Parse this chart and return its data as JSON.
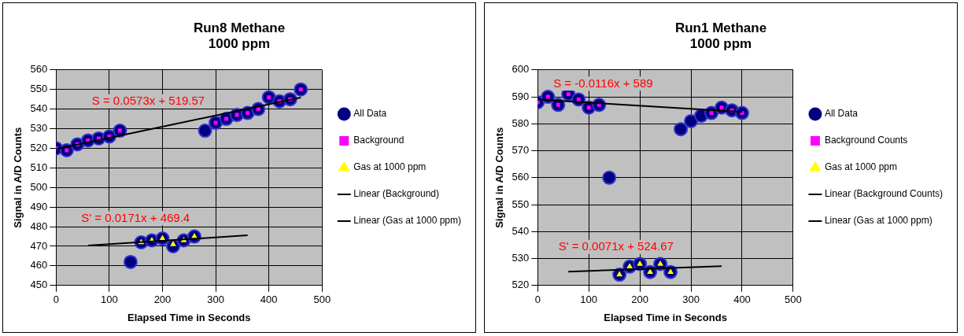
{
  "chart_data": [
    {
      "type": "scatter",
      "title": "Run8 Methane\n1000 ppm",
      "xlabel": "Elapsed Time in Seconds",
      "ylabel": "Signal in A/D Counts",
      "xlim": [
        0,
        500
      ],
      "xticks": [
        0,
        100,
        200,
        300,
        400,
        500
      ],
      "ylim": [
        450,
        560
      ],
      "yticks": [
        450,
        460,
        470,
        480,
        490,
        500,
        510,
        520,
        530,
        540,
        550,
        560
      ],
      "grid": true,
      "legend": "right",
      "series": [
        {
          "name": "All Data",
          "color": "#000080",
          "marker": "circle",
          "x": [
            0,
            20,
            40,
            60,
            80,
            100,
            120,
            140,
            160,
            180,
            200,
            220,
            240,
            260,
            280,
            300,
            320,
            340,
            360,
            380,
            400,
            420,
            440,
            460
          ],
          "values": [
            520,
            519,
            522,
            524,
            525,
            526,
            529,
            462,
            472,
            473,
            474,
            470,
            473,
            475,
            529,
            533,
            535,
            537,
            538,
            540,
            546,
            544,
            545,
            550
          ]
        },
        {
          "name": "Background",
          "color": "#ff00ff",
          "marker": "square",
          "x": [
            0,
            20,
            40,
            60,
            80,
            100,
            120,
            300,
            320,
            340,
            360,
            380,
            400,
            420,
            440,
            460
          ],
          "values": [
            520,
            519,
            522,
            524,
            525,
            526,
            529,
            533,
            535,
            537,
            538,
            540,
            546,
            544,
            545,
            550
          ]
        },
        {
          "name": "Gas at 1000 ppm",
          "color": "#ffff00",
          "marker": "triangle",
          "x": [
            160,
            180,
            200,
            220,
            240,
            260
          ],
          "values": [
            472,
            473,
            474,
            471,
            473,
            475
          ]
        },
        {
          "name": "Linear (Background)",
          "type": "line",
          "color": "#000000",
          "marker": "none",
          "line_style": "solid",
          "x": [
            0,
            460
          ],
          "values": [
            519.6,
            545.9
          ]
        },
        {
          "name": "Linear (Gas at 1000 ppm)",
          "type": "line",
          "color": "#000000",
          "marker": "none",
          "line_style": "solid",
          "x": [
            60,
            360
          ],
          "values": [
            470.4,
            475.6
          ]
        }
      ],
      "annotations": [
        "S = 0.0573x + 519.57",
        "S' = 0.0171x + 469.4"
      ]
    },
    {
      "type": "scatter",
      "title": "Run1 Methane\n1000 ppm",
      "xlabel": "Elapsed Time in Seconds",
      "ylabel": "Signal in A/D Counts",
      "xlim": [
        0,
        500
      ],
      "xticks": [
        0,
        100,
        200,
        300,
        400,
        500
      ],
      "ylim": [
        520,
        600
      ],
      "yticks": [
        520,
        530,
        540,
        550,
        560,
        570,
        580,
        590,
        600
      ],
      "grid": true,
      "legend": "right",
      "series": [
        {
          "name": "All Data",
          "color": "#000080",
          "marker": "circle",
          "x": [
            0,
            20,
            40,
            60,
            80,
            100,
            120,
            140,
            160,
            180,
            200,
            220,
            240,
            260,
            280,
            300,
            320,
            340,
            360,
            380,
            400
          ],
          "values": [
            588,
            590,
            587,
            591,
            589,
            586,
            587,
            560,
            524,
            527,
            528,
            525,
            528,
            525,
            578,
            581,
            583,
            584,
            586,
            585,
            584
          ]
        },
        {
          "name": "Background Counts",
          "color": "#ff00ff",
          "marker": "square",
          "x": [
            0,
            20,
            40,
            60,
            80,
            100,
            120,
            340,
            360,
            380,
            400
          ],
          "values": [
            588,
            590,
            587,
            591,
            589,
            586,
            587,
            584,
            586,
            585,
            584
          ]
        },
        {
          "name": "Gas at 1000 ppm",
          "color": "#ffff00",
          "marker": "triangle",
          "x": [
            160,
            180,
            200,
            220,
            240,
            260
          ],
          "values": [
            524,
            527,
            528,
            525,
            528,
            525
          ]
        },
        {
          "name": "Linear (Background Counts)",
          "type": "line",
          "color": "#000000",
          "marker": "none",
          "line_style": "solid",
          "x": [
            0,
            400
          ],
          "values": [
            589,
            584.4
          ]
        },
        {
          "name": "Linear (Gas at 1000 ppm)",
          "type": "line",
          "color": "#000000",
          "marker": "none",
          "line_style": "solid",
          "x": [
            60,
            360
          ],
          "values": [
            525.1,
            527.2
          ]
        }
      ],
      "annotations": [
        "S = -0.0116x + 589",
        "S' = 0.0071x + 524.67"
      ]
    }
  ]
}
